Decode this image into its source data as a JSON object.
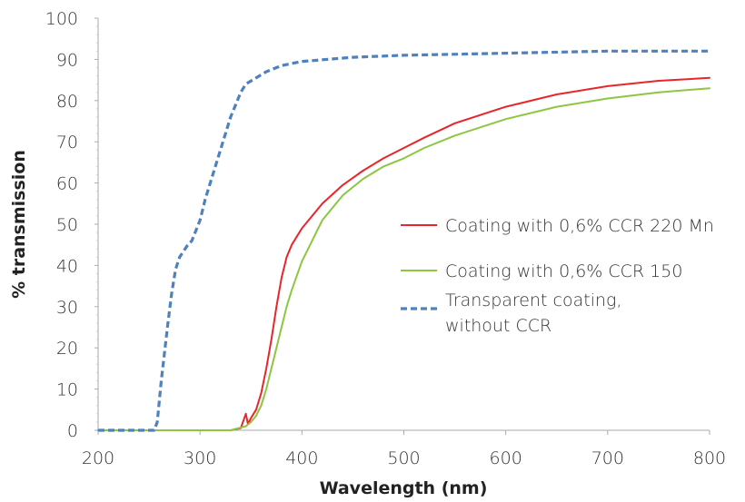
{
  "chart_data": {
    "type": "line",
    "xlabel": "Wavelength (nm)",
    "ylabel": "% transmission",
    "xlim": [
      200,
      800
    ],
    "ylim": [
      0,
      100
    ],
    "xticks": [
      "200",
      "300",
      "400",
      "500",
      "600",
      "700",
      "800"
    ],
    "yticks": [
      "0",
      "10",
      "20",
      "30",
      "40",
      "50",
      "60",
      "70",
      "80",
      "90",
      "100"
    ],
    "grid": false,
    "legend_position": "right",
    "series": [
      {
        "name": "Coating with 0,6% CCR 220 Mn",
        "color": "#e8262a",
        "style": "solid",
        "points": [
          [
            200,
            0
          ],
          [
            250,
            0
          ],
          [
            300,
            0
          ],
          [
            330,
            0
          ],
          [
            340,
            0.5
          ],
          [
            345,
            4
          ],
          [
            347,
            1.5
          ],
          [
            350,
            3
          ],
          [
            355,
            5
          ],
          [
            360,
            9
          ],
          [
            365,
            15
          ],
          [
            370,
            22
          ],
          [
            375,
            30
          ],
          [
            380,
            37
          ],
          [
            385,
            42
          ],
          [
            390,
            45
          ],
          [
            400,
            49
          ],
          [
            420,
            55
          ],
          [
            440,
            59.5
          ],
          [
            460,
            63
          ],
          [
            480,
            66
          ],
          [
            500,
            68.5
          ],
          [
            520,
            71
          ],
          [
            550,
            74.5
          ],
          [
            600,
            78.5
          ],
          [
            650,
            81.5
          ],
          [
            700,
            83.5
          ],
          [
            750,
            84.8
          ],
          [
            800,
            85.5
          ]
        ]
      },
      {
        "name": "Coating with 0,6% CCR 150",
        "color": "#8dc63f",
        "style": "solid",
        "points": [
          [
            200,
            0
          ],
          [
            250,
            0
          ],
          [
            300,
            0
          ],
          [
            330,
            0
          ],
          [
            345,
            1
          ],
          [
            350,
            2
          ],
          [
            355,
            3.5
          ],
          [
            360,
            6
          ],
          [
            365,
            10
          ],
          [
            370,
            15
          ],
          [
            375,
            20
          ],
          [
            380,
            25
          ],
          [
            385,
            30
          ],
          [
            390,
            34
          ],
          [
            400,
            41
          ],
          [
            420,
            51
          ],
          [
            440,
            57
          ],
          [
            460,
            61
          ],
          [
            480,
            64
          ],
          [
            500,
            66
          ],
          [
            520,
            68.5
          ],
          [
            550,
            71.5
          ],
          [
            600,
            75.5
          ],
          [
            650,
            78.5
          ],
          [
            700,
            80.5
          ],
          [
            750,
            82
          ],
          [
            800,
            83
          ]
        ]
      },
      {
        "name": "Transparent coating,\nwithout CCR",
        "color": "#4f81bd",
        "style": "dashed",
        "points": [
          [
            200,
            0
          ],
          [
            255,
            0
          ],
          [
            258,
            2
          ],
          [
            262,
            12
          ],
          [
            268,
            25
          ],
          [
            272,
            33
          ],
          [
            276,
            39
          ],
          [
            280,
            42
          ],
          [
            288,
            45
          ],
          [
            292,
            46
          ],
          [
            300,
            51
          ],
          [
            305,
            56
          ],
          [
            310,
            60
          ],
          [
            320,
            68
          ],
          [
            330,
            76
          ],
          [
            340,
            82
          ],
          [
            345,
            84
          ],
          [
            355,
            85.5
          ],
          [
            365,
            87
          ],
          [
            380,
            88.5
          ],
          [
            400,
            89.5
          ],
          [
            450,
            90.5
          ],
          [
            500,
            91
          ],
          [
            600,
            91.5
          ],
          [
            700,
            92
          ],
          [
            800,
            92
          ]
        ]
      }
    ]
  }
}
